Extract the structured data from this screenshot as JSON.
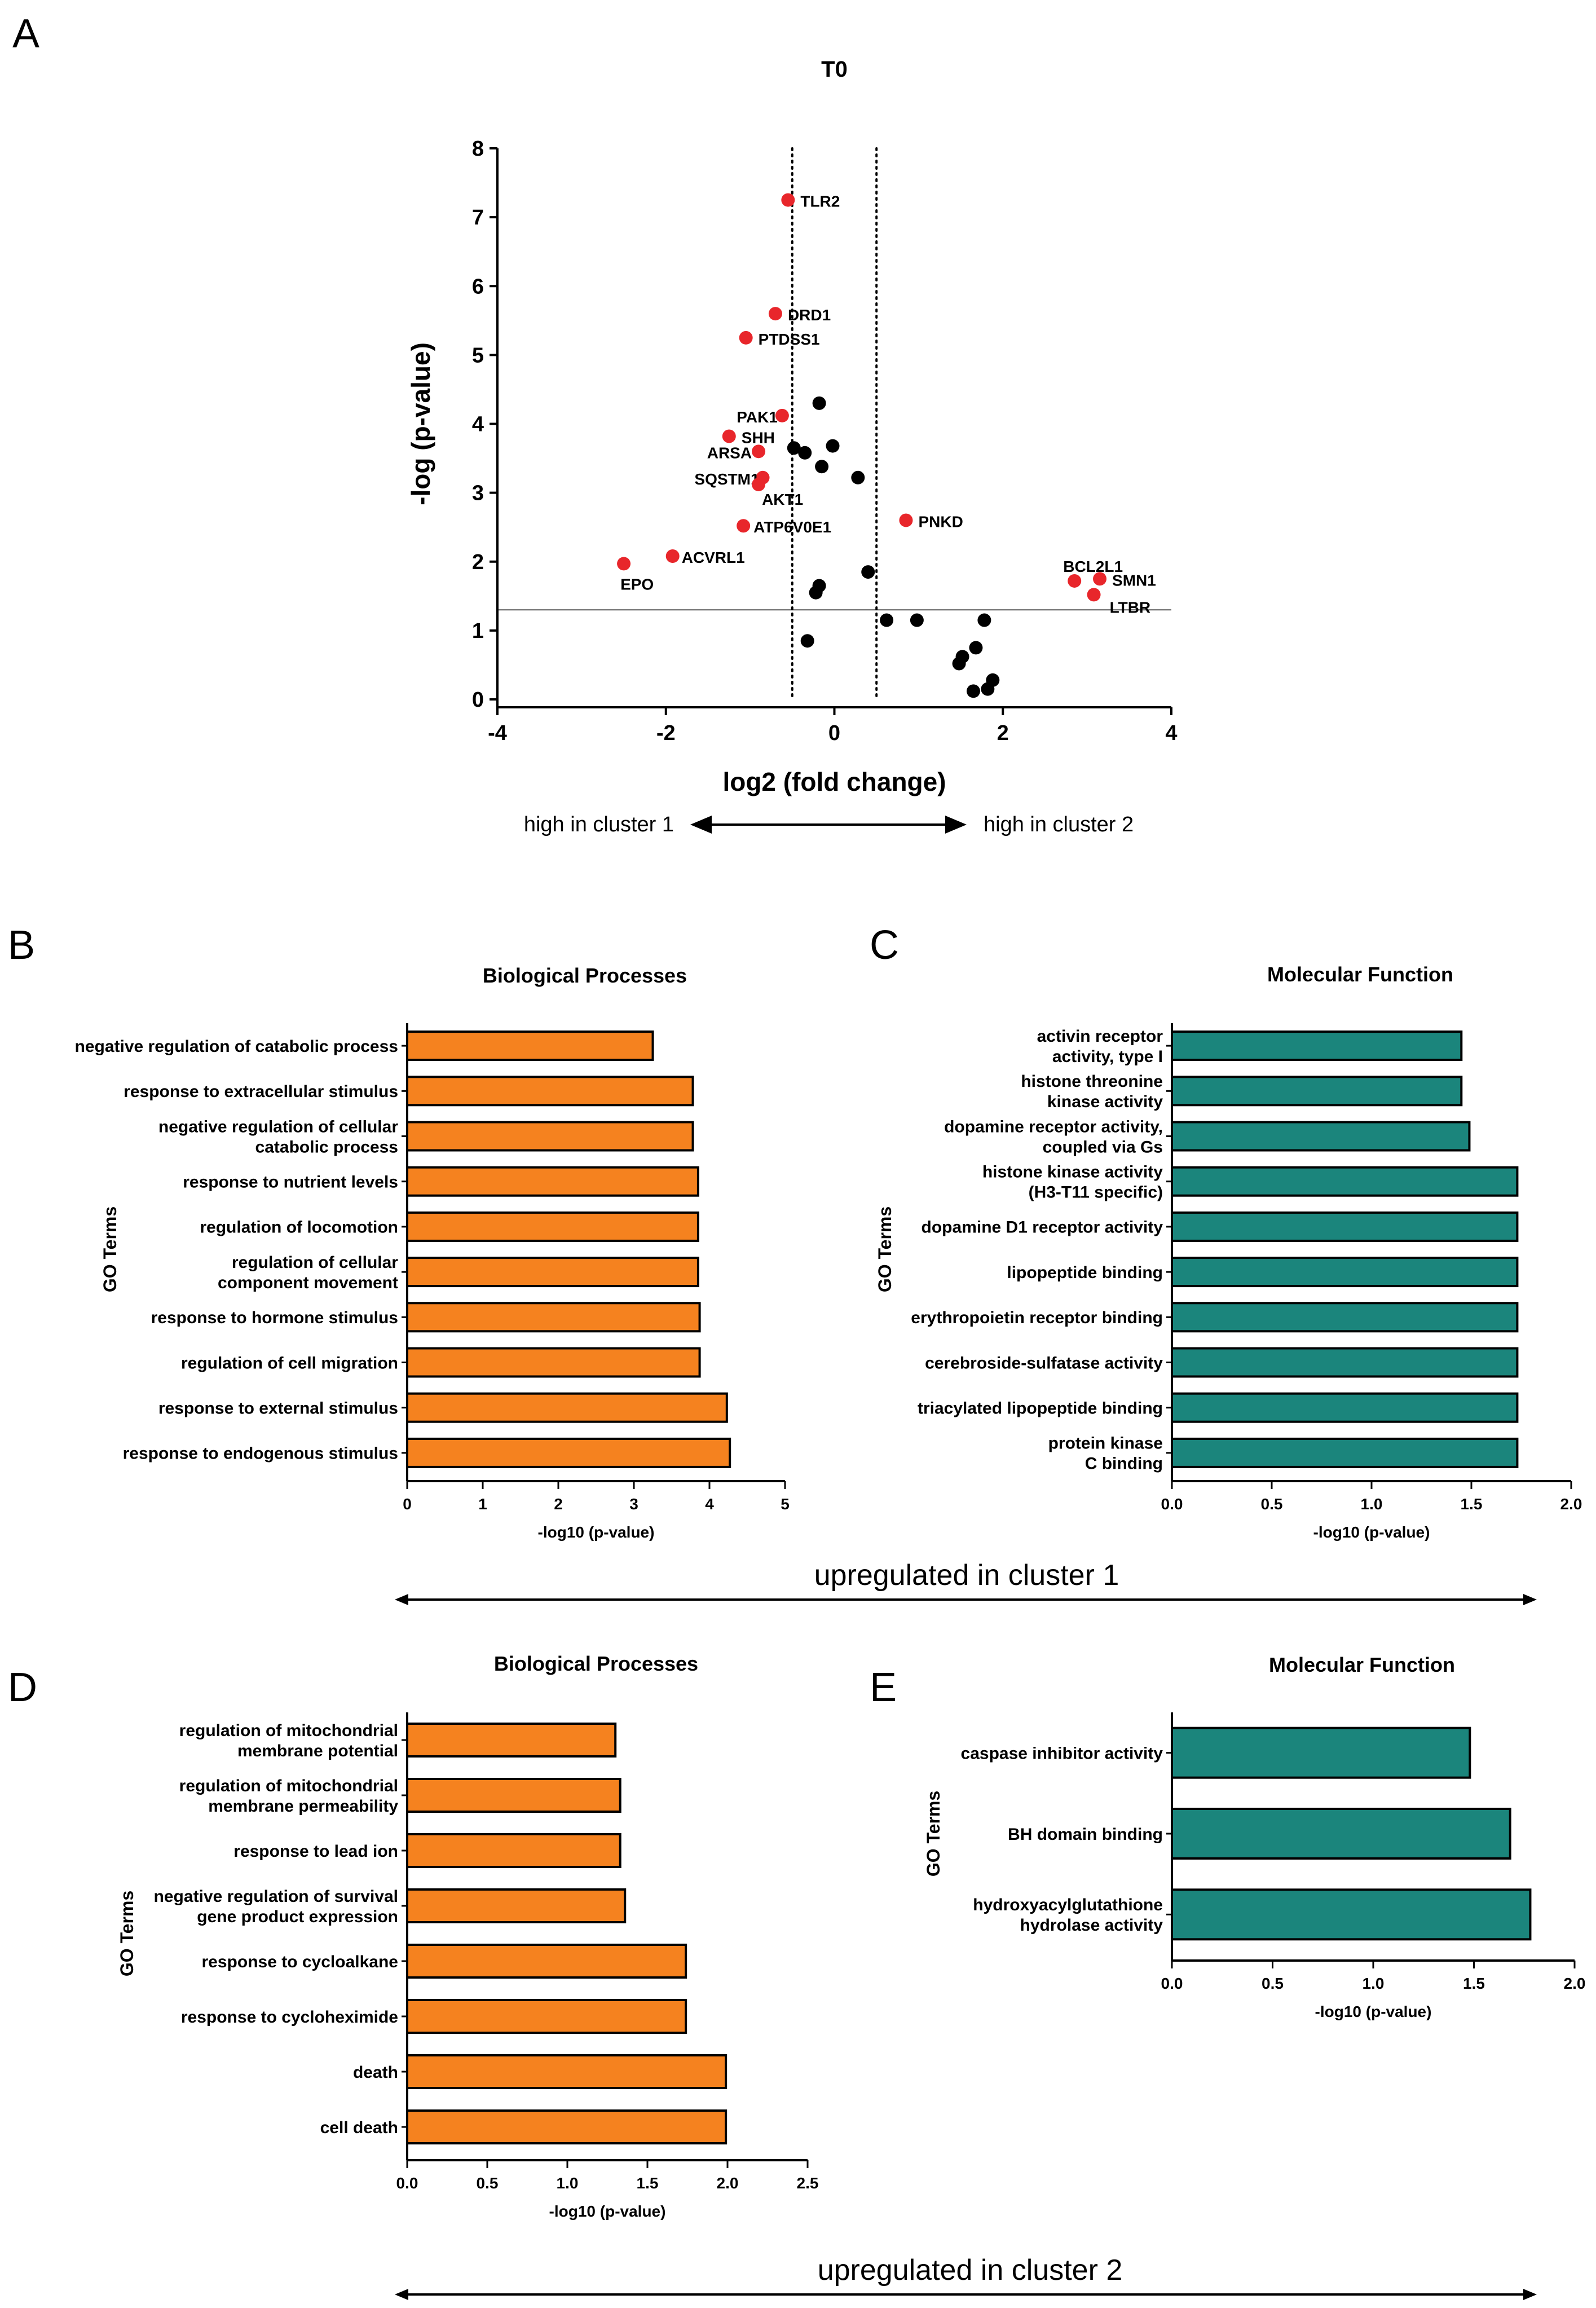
{
  "panel_letters": [
    "A",
    "B",
    "C",
    "D",
    "E"
  ],
  "colors": {
    "red": "#e8262b",
    "black": "#000000",
    "orange": "#f5821f",
    "teal": "#1b857c"
  },
  "volcano": {
    "arrow_left": "high in cluster 1",
    "arrow_right": "high in cluster 2"
  },
  "cluster1_label": "upregulated in cluster 1",
  "cluster2_label": "upregulated in cluster 2",
  "chart_data": [
    {
      "id": "A",
      "type": "scatter",
      "title": "T0",
      "xlabel": "log2 (fold change)",
      "ylabel": "-log (p-value)",
      "xlim": [
        -4,
        4
      ],
      "ylim": [
        0,
        8
      ],
      "xticks": [
        -4,
        -2,
        0,
        2,
        4
      ],
      "yticks": [
        0,
        1,
        2,
        3,
        4,
        5,
        6,
        7,
        8
      ],
      "vlines": [
        -0.5,
        0.5
      ],
      "hline": 1.3,
      "points": [
        {
          "x": -0.55,
          "y": 7.25,
          "label": "TLR2",
          "color": "red"
        },
        {
          "x": -0.7,
          "y": 5.6,
          "label": "DRD1",
          "color": "red"
        },
        {
          "x": -1.05,
          "y": 5.25,
          "label": "PTDSS1",
          "color": "red"
        },
        {
          "x": -0.62,
          "y": 4.12,
          "label": "PAK1",
          "color": "red"
        },
        {
          "x": -1.25,
          "y": 3.82,
          "label": "SHH",
          "color": "red"
        },
        {
          "x": -0.9,
          "y": 3.6,
          "label": "ARSA",
          "color": "red"
        },
        {
          "x": -0.85,
          "y": 3.22,
          "label": "SQSTM1",
          "color": "red"
        },
        {
          "x": -0.9,
          "y": 3.12,
          "label": "AKT1",
          "color": "red"
        },
        {
          "x": -1.08,
          "y": 2.52,
          "label": "ATP6V0E1",
          "color": "red"
        },
        {
          "x": 0.85,
          "y": 2.6,
          "label": "PNKD",
          "color": "red"
        },
        {
          "x": -1.92,
          "y": 2.08,
          "label": "ACVRL1",
          "color": "red"
        },
        {
          "x": -2.5,
          "y": 1.97,
          "label": "EPO",
          "color": "red"
        },
        {
          "x": 2.85,
          "y": 1.72,
          "label": "BCL2L1",
          "color": "red"
        },
        {
          "x": 3.15,
          "y": 1.75,
          "label": "SMN1",
          "color": "red"
        },
        {
          "x": 3.08,
          "y": 1.52,
          "label": "LTBR",
          "color": "red"
        },
        {
          "x": -0.18,
          "y": 4.3,
          "label": "",
          "color": "black"
        },
        {
          "x": -0.48,
          "y": 3.65,
          "label": "",
          "color": "black"
        },
        {
          "x": -0.35,
          "y": 3.58,
          "label": "",
          "color": "black"
        },
        {
          "x": -0.02,
          "y": 3.68,
          "label": "",
          "color": "black"
        },
        {
          "x": -0.15,
          "y": 3.38,
          "label": "",
          "color": "black"
        },
        {
          "x": 0.28,
          "y": 3.22,
          "label": "",
          "color": "black"
        },
        {
          "x": 0.4,
          "y": 1.85,
          "label": "",
          "color": "black"
        },
        {
          "x": -0.18,
          "y": 1.65,
          "label": "",
          "color": "black"
        },
        {
          "x": -0.22,
          "y": 1.55,
          "label": "",
          "color": "black"
        },
        {
          "x": 0.62,
          "y": 1.15,
          "label": "",
          "color": "black"
        },
        {
          "x": 0.98,
          "y": 1.15,
          "label": "",
          "color": "black"
        },
        {
          "x": 1.78,
          "y": 1.15,
          "label": "",
          "color": "black"
        },
        {
          "x": -0.32,
          "y": 0.85,
          "label": "",
          "color": "black"
        },
        {
          "x": 1.52,
          "y": 0.62,
          "label": "",
          "color": "black"
        },
        {
          "x": 1.48,
          "y": 0.52,
          "label": "",
          "color": "black"
        },
        {
          "x": 1.68,
          "y": 0.75,
          "label": "",
          "color": "black"
        },
        {
          "x": 1.88,
          "y": 0.28,
          "label": "",
          "color": "black"
        },
        {
          "x": 1.82,
          "y": 0.15,
          "label": "",
          "color": "black"
        },
        {
          "x": 1.65,
          "y": 0.12,
          "label": "",
          "color": "black"
        }
      ]
    },
    {
      "id": "B",
      "type": "bar",
      "orientation": "horizontal",
      "title": "Biological Processes",
      "xlabel": "-log10 (p-value)",
      "ylabel": "GO Terms",
      "xlim": [
        0,
        5
      ],
      "xticks": [
        "0",
        "1",
        "2",
        "3",
        "4",
        "5"
      ],
      "color": "orange",
      "categories": [
        [
          "negative regulation of catabolic process"
        ],
        [
          "response to extracellular stimulus"
        ],
        [
          "negative regulation of cellular",
          "catabolic process"
        ],
        [
          "response to nutrient levels"
        ],
        [
          "regulation of locomotion"
        ],
        [
          "regulation of cellular",
          "component movement"
        ],
        [
          "response to hormone stimulus"
        ],
        [
          "regulation of cell migration"
        ],
        [
          "response to external stimulus"
        ],
        [
          "response to endogenous stimulus"
        ]
      ],
      "values": [
        3.25,
        3.78,
        3.78,
        3.85,
        3.85,
        3.85,
        3.87,
        3.87,
        4.23,
        4.27
      ]
    },
    {
      "id": "C",
      "type": "bar",
      "orientation": "horizontal",
      "title": "Molecular Function",
      "xlabel": "-log10 (p-value)",
      "ylabel": "GO Terms",
      "xlim": [
        0,
        2
      ],
      "xticks": [
        "0.0",
        "0.5",
        "1.0",
        "1.5",
        "2.0"
      ],
      "color": "teal",
      "categories": [
        [
          "activin receptor",
          "activity, type I"
        ],
        [
          "histone threonine",
          "kinase activity"
        ],
        [
          "dopamine receptor activity,",
          "coupled via Gs"
        ],
        [
          "histone kinase activity",
          "(H3-T11 specific)"
        ],
        [
          "dopamine D1 receptor activity"
        ],
        [
          "lipopeptide binding"
        ],
        [
          "erythropoietin receptor binding"
        ],
        [
          "cerebroside-sulfatase activity"
        ],
        [
          "triacylated lipopeptide binding"
        ],
        [
          "protein kinase",
          "C binding"
        ]
      ],
      "values": [
        1.45,
        1.45,
        1.49,
        1.73,
        1.73,
        1.73,
        1.73,
        1.73,
        1.73,
        1.73
      ]
    },
    {
      "id": "D",
      "type": "bar",
      "orientation": "horizontal",
      "title": "Biological Processes",
      "xlabel": "-log10 (p-value)",
      "ylabel": "GO Terms",
      "xlim": [
        0,
        2.5
      ],
      "xticks": [
        "0.0",
        "0.5",
        "1.0",
        "1.5",
        "2.0",
        "2.5"
      ],
      "color": "orange",
      "categories": [
        [
          "regulation of mitochondrial",
          "membrane potential"
        ],
        [
          "regulation of mitochondrial",
          "membrane permeability"
        ],
        [
          "response to lead ion"
        ],
        [
          "negative regulation of survival",
          "gene product expression"
        ],
        [
          "response to cycloalkane"
        ],
        [
          "response to cycloheximide"
        ],
        [
          "death"
        ],
        [
          "cell death"
        ]
      ],
      "values": [
        1.3,
        1.33,
        1.33,
        1.36,
        1.74,
        1.74,
        1.99,
        1.99
      ]
    },
    {
      "id": "E",
      "type": "bar",
      "orientation": "horizontal",
      "title": "Molecular Function",
      "xlabel": "-log10 (p-value)",
      "ylabel": "GO Terms",
      "xlim": [
        0,
        2
      ],
      "xticks": [
        "0.0",
        "0.5",
        "1.0",
        "1.5",
        "2.0"
      ],
      "color": "teal",
      "categories": [
        [
          "caspase inhibitor activity"
        ],
        [
          "BH domain binding"
        ],
        [
          "hydroxyacylglutathione",
          "hydrolase activity"
        ]
      ],
      "values": [
        1.48,
        1.68,
        1.78
      ]
    }
  ]
}
